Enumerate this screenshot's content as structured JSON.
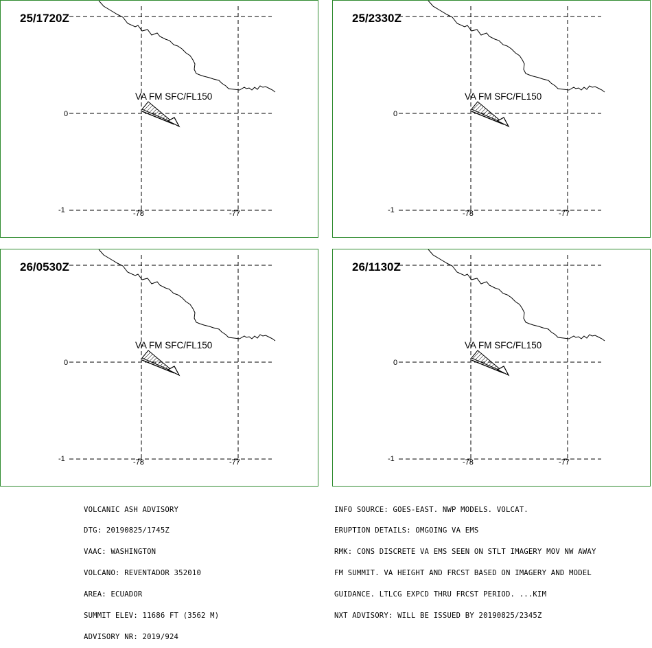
{
  "panels": [
    {
      "time": "25/1720Z",
      "va_label": "VA FM SFC/FL150"
    },
    {
      "time": "25/2330Z",
      "va_label": "VA FM SFC/FL150"
    },
    {
      "time": "26/0530Z",
      "va_label": "VA FM SFC/FL150"
    },
    {
      "time": "26/1130Z",
      "va_label": "VA FM SFC/FL150"
    }
  ],
  "axes": {
    "lat_labels": [
      "0",
      "-1"
    ],
    "lon_labels": [
      "-78",
      "-77"
    ]
  },
  "colors": {
    "panel_border": "#2e8b2e",
    "lines": "#000000"
  },
  "advisory_left": [
    "VOLCANIC ASH ADVISORY",
    "DTG: 20190825/1745Z",
    "VAAC: WASHINGTON",
    "VOLCANO: REVENTADOR 352010",
    "AREA: ECUADOR",
    "SUMMIT ELEV: 11686 FT (3562 M)",
    "ADVISORY NR: 2019/924"
  ],
  "advisory_right": [
    "INFO SOURCE: GOES-EAST. NWP MODELS. VOLCAT.",
    "ERUPTION DETAILS: OMGOING VA EMS",
    "RMK: CONS DISCRETE VA EMS SEEN ON STLT IMAGERY MOV NW AWAY",
    "FM SUMMIT. VA HEIGHT AND FRCST BASED ON IMAGERY AND MODEL",
    "GUIDANCE. LTLCG EXPCD THRU FRCST PERIOD. ...KIM",
    "NXT ADVISORY: WILL BE ISSUED BY 20190825/2345Z"
  ]
}
